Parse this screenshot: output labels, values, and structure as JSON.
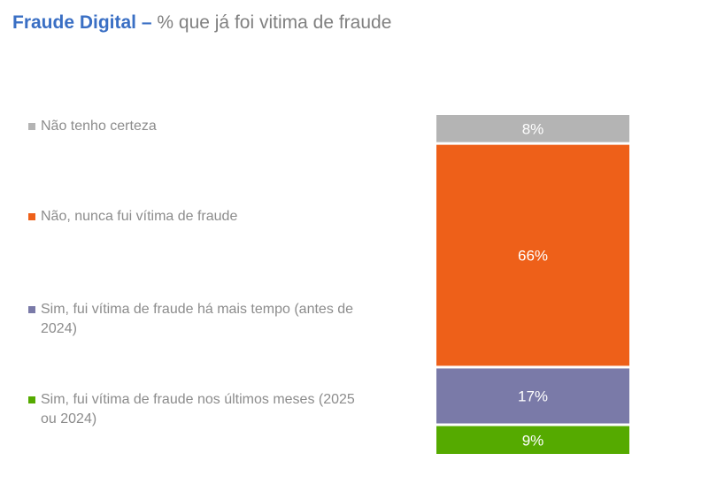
{
  "title": {
    "main": "Fraude Digital",
    "separator": " – ",
    "subtitle": "% que já foi vitima de fraude"
  },
  "chart_data": {
    "type": "bar",
    "stacked": true,
    "orientation": "vertical",
    "ylim": [
      0,
      100
    ],
    "series": [
      {
        "name": "Sim, fui vítima de fraude nos últimos meses (2025 ou 2024)",
        "value": 9,
        "label": "9%",
        "color": "#55aa00"
      },
      {
        "name": "Sim, fui vítima de fraude há mais tempo (antes de 2024)",
        "value": 17,
        "label": "17%",
        "color": "#7a7aa8"
      },
      {
        "name": "Não, nunca fui vítima de fraude",
        "value": 66,
        "label": "66%",
        "color": "#ee6019"
      },
      {
        "name": "Não tenho certeza",
        "value": 8,
        "label": "8%",
        "color": "#b4b4b4"
      }
    ],
    "legend_placement": "left",
    "grid": false
  },
  "legend": {
    "items": [
      {
        "label": "Não tenho certeza",
        "color": "#b4b4b4"
      },
      {
        "label": "Não, nunca fui vítima de fraude",
        "color": "#ee6019"
      },
      {
        "label": "Sim, fui vítima de fraude há mais tempo (antes de 2024)",
        "color": "#7a7aa8"
      },
      {
        "label": "Sim, fui vítima de fraude nos últimos meses (2025 ou 2024)",
        "color": "#55aa00"
      }
    ]
  }
}
